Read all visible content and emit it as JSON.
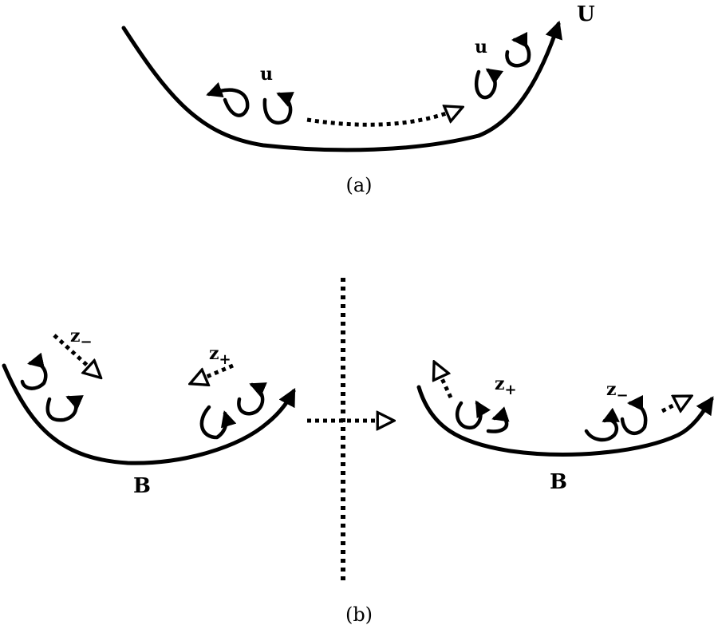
{
  "panel_a": {
    "flow_label": "U",
    "eddy_label_left": "u",
    "eddy_label_right": "u",
    "caption": "(a)"
  },
  "panel_b": {
    "left": {
      "field_label": "B",
      "label_z_minus_base": "z",
      "label_z_minus_sub": "−",
      "label_z_plus_base": "z",
      "label_z_plus_sub": "+"
    },
    "right": {
      "field_label": "B",
      "label_z_plus_base": "z",
      "label_z_plus_sub": "+",
      "label_z_minus_base": "z",
      "label_z_minus_sub": "−"
    },
    "caption": "(b)"
  },
  "colors": {
    "ink": "#000000",
    "background": "#ffffff"
  }
}
